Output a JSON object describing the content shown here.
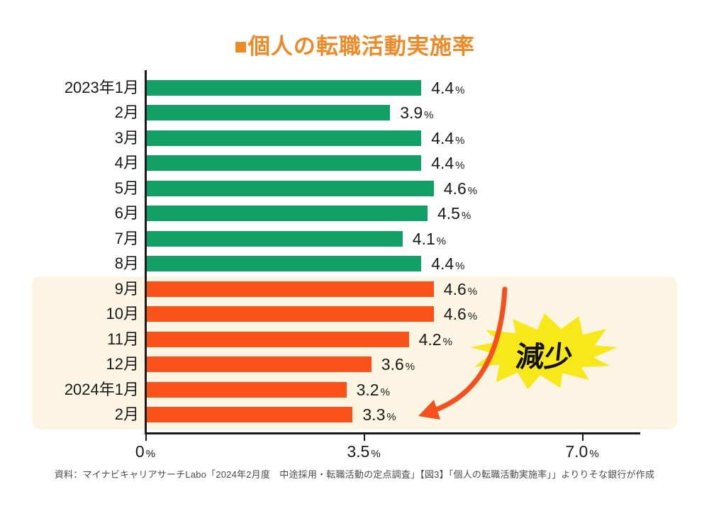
{
  "title": "■個人の転職活動実施率",
  "source": "資料：マイナビキャリアサーチLabo「2024年2月度　中途採用・転職活動の定点調査」【図3】「個人の転職活動実施率」」よりりそな銀行が作成",
  "annotation": {
    "burst_label": "減少",
    "arrow": "curved-arrow-from-burst-to-2024-02-bar"
  },
  "colors": {
    "title": "#ec8a28",
    "bar_normal": "#12a066",
    "bar_highlight": "#fa5219",
    "highlight_band": "#fcf5e4",
    "burst": "#f8e819",
    "arrow": "#f4511e",
    "axis": "#1a1a1a",
    "text": "#1a1a1a",
    "source_text": "#4b4b4b"
  },
  "chart_data": {
    "type": "bar",
    "orientation": "horizontal",
    "title": "個人の転職活動実施率",
    "xlabel": "",
    "ylabel": "",
    "unit": "%",
    "categories": [
      "2023年1月",
      "2月",
      "3月",
      "4月",
      "5月",
      "6月",
      "7月",
      "8月",
      "9月",
      "10月",
      "11月",
      "12月",
      "2024年1月",
      "2月"
    ],
    "values": [
      4.4,
      3.9,
      4.4,
      4.4,
      4.6,
      4.5,
      4.1,
      4.4,
      4.6,
      4.6,
      4.2,
      3.6,
      3.2,
      3.3
    ],
    "highlight_start_index": 8,
    "highlight_note": "9月〜2024年2月 decreasing period shaded cream with orange bars, annotated 減少",
    "xlim": [
      0,
      7.95
    ],
    "xticks": [
      {
        "label": "0",
        "value": 0
      },
      {
        "label": "3.5",
        "value": 3.5
      },
      {
        "label": "7.0",
        "value": 7.0
      }
    ],
    "grid": false,
    "legend": false
  }
}
